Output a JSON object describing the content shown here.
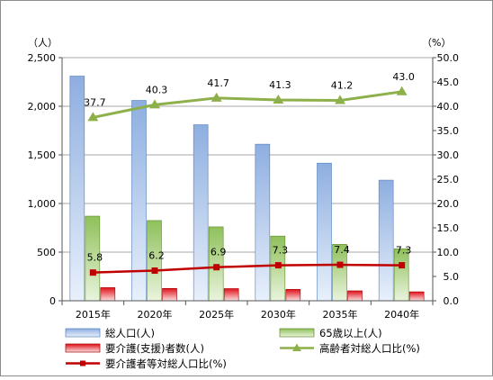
{
  "chart_data": {
    "type": "bar",
    "categories": [
      "2015年",
      "2020年",
      "2025年",
      "2030年",
      "2035年",
      "2040年"
    ],
    "y_left": {
      "unit_label": "（人）",
      "ylim": [
        0,
        2500
      ],
      "ticks": [
        0,
        500,
        1000,
        1500,
        2000,
        2500
      ],
      "tick_labels": [
        "0",
        "500",
        "1,000",
        "1,500",
        "2,000",
        "2,500"
      ]
    },
    "y_right": {
      "unit_label": "（%）",
      "ylim": [
        0,
        50
      ],
      "ticks": [
        0,
        5,
        10,
        15,
        20,
        25,
        30,
        35,
        40,
        45,
        50
      ],
      "tick_labels": [
        "0.0",
        "5.0",
        "10.0",
        "15.0",
        "20.0",
        "25.0",
        "30.0",
        "35.0",
        "40.0",
        "45.0",
        "50.0"
      ]
    },
    "series": [
      {
        "name": "総人口(人)",
        "kind": "bar",
        "axis": "left",
        "color": "#95b3d7",
        "values": [
          2310,
          2060,
          1810,
          1610,
          1415,
          1240
        ]
      },
      {
        "name": "65歳以上(人)",
        "kind": "bar",
        "axis": "left",
        "color": "#9bbb59",
        "values": [
          870,
          825,
          760,
          665,
          580,
          535
        ]
      },
      {
        "name": "要介護(支援)者数(人)",
        "kind": "bar",
        "axis": "left",
        "color": "#e0101a",
        "values": [
          135,
          127,
          125,
          117,
          102,
          92
        ]
      },
      {
        "name": "高齢者対総人口比(%)",
        "kind": "line",
        "axis": "right",
        "color": "#8db04a",
        "marker": "triangle",
        "values": [
          37.7,
          40.3,
          41.7,
          41.3,
          41.2,
          43.0
        ],
        "labels": [
          "37.7",
          "40.3",
          "41.7",
          "41.3",
          "41.2",
          "43.0"
        ]
      },
      {
        "name": "要介護者等対総人口比(%)",
        "kind": "line",
        "axis": "right",
        "color": "#c00000",
        "marker": "square",
        "values": [
          5.8,
          6.2,
          6.9,
          7.3,
          7.4,
          7.3
        ],
        "labels": [
          "5.8",
          "6.2",
          "6.9",
          "7.3",
          "7.4",
          "7.3"
        ]
      }
    ],
    "grid": true,
    "legend_position": "bottom"
  }
}
